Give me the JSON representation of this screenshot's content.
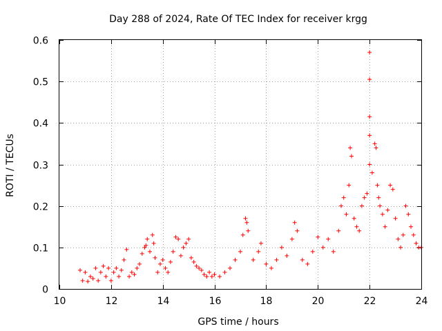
{
  "chart_data": {
    "type": "scatter",
    "title": "Day 288 of 2024, Rate Of TEC Index for receiver krgg",
    "xlabel": "GPS time / hours",
    "ylabel": "ROTI / TECUs",
    "xlim": [
      10,
      24
    ],
    "ylim": [
      0,
      0.6
    ],
    "xticks": [
      "10",
      "12",
      "14",
      "16",
      "18",
      "20",
      "22",
      "24"
    ],
    "yticks": [
      "0",
      "0.1",
      "0.2",
      "0.3",
      "0.4",
      "0.5",
      "0.6"
    ],
    "grid": true,
    "marker": "plus",
    "color": "#ff0000",
    "series": [
      {
        "name": "ROTI",
        "x": [
          10.8,
          10.9,
          11.0,
          11.1,
          11.2,
          11.3,
          11.4,
          11.5,
          11.6,
          11.7,
          11.8,
          11.9,
          12.0,
          12.1,
          12.2,
          12.3,
          12.4,
          12.5,
          12.6,
          12.7,
          12.8,
          12.9,
          13.0,
          13.1,
          13.2,
          13.3,
          13.35,
          13.4,
          13.5,
          13.6,
          13.65,
          13.7,
          13.8,
          13.9,
          14.0,
          14.1,
          14.2,
          14.3,
          14.4,
          14.5,
          14.6,
          14.7,
          14.8,
          14.9,
          15.0,
          15.1,
          15.2,
          15.3,
          15.4,
          15.5,
          15.6,
          15.7,
          15.8,
          15.9,
          16.0,
          16.2,
          16.4,
          16.6,
          16.8,
          17.0,
          17.1,
          17.2,
          17.25,
          17.3,
          17.5,
          17.7,
          17.8,
          18.0,
          18.2,
          18.4,
          18.6,
          18.8,
          19.0,
          19.1,
          19.2,
          19.4,
          19.6,
          19.8,
          20.0,
          20.2,
          20.4,
          20.6,
          20.8,
          20.9,
          21.0,
          21.1,
          21.2,
          21.25,
          21.3,
          21.4,
          21.5,
          21.6,
          21.7,
          21.8,
          21.9,
          22.0,
          22.0,
          22.0,
          22.0,
          22.0,
          22.1,
          22.2,
          22.25,
          22.3,
          22.35,
          22.4,
          22.5,
          22.6,
          22.7,
          22.8,
          22.9,
          23.0,
          23.1,
          23.2,
          23.3,
          23.4,
          23.5,
          23.6,
          23.7,
          23.8,
          23.9,
          24.0
        ],
        "y": [
          0.045,
          0.02,
          0.04,
          0.018,
          0.03,
          0.025,
          0.05,
          0.02,
          0.04,
          0.055,
          0.03,
          0.05,
          0.02,
          0.04,
          0.05,
          0.03,
          0.045,
          0.07,
          0.095,
          0.03,
          0.04,
          0.035,
          0.05,
          0.06,
          0.085,
          0.1,
          0.105,
          0.12,
          0.09,
          0.13,
          0.11,
          0.075,
          0.04,
          0.06,
          0.07,
          0.05,
          0.04,
          0.065,
          0.09,
          0.125,
          0.12,
          0.08,
          0.1,
          0.11,
          0.12,
          0.075,
          0.065,
          0.055,
          0.05,
          0.045,
          0.035,
          0.03,
          0.04,
          0.03,
          0.035,
          0.03,
          0.04,
          0.05,
          0.07,
          0.09,
          0.13,
          0.17,
          0.16,
          0.14,
          0.07,
          0.09,
          0.11,
          0.06,
          0.05,
          0.07,
          0.1,
          0.08,
          0.12,
          0.16,
          0.14,
          0.07,
          0.06,
          0.09,
          0.125,
          0.1,
          0.12,
          0.09,
          0.14,
          0.2,
          0.22,
          0.18,
          0.25,
          0.34,
          0.32,
          0.17,
          0.15,
          0.14,
          0.2,
          0.22,
          0.23,
          0.57,
          0.505,
          0.415,
          0.37,
          0.3,
          0.28,
          0.35,
          0.34,
          0.25,
          0.22,
          0.2,
          0.18,
          0.15,
          0.19,
          0.25,
          0.24,
          0.17,
          0.12,
          0.1,
          0.13,
          0.2,
          0.18,
          0.15,
          0.13,
          0.11,
          0.1,
          0.1
        ]
      }
    ]
  }
}
